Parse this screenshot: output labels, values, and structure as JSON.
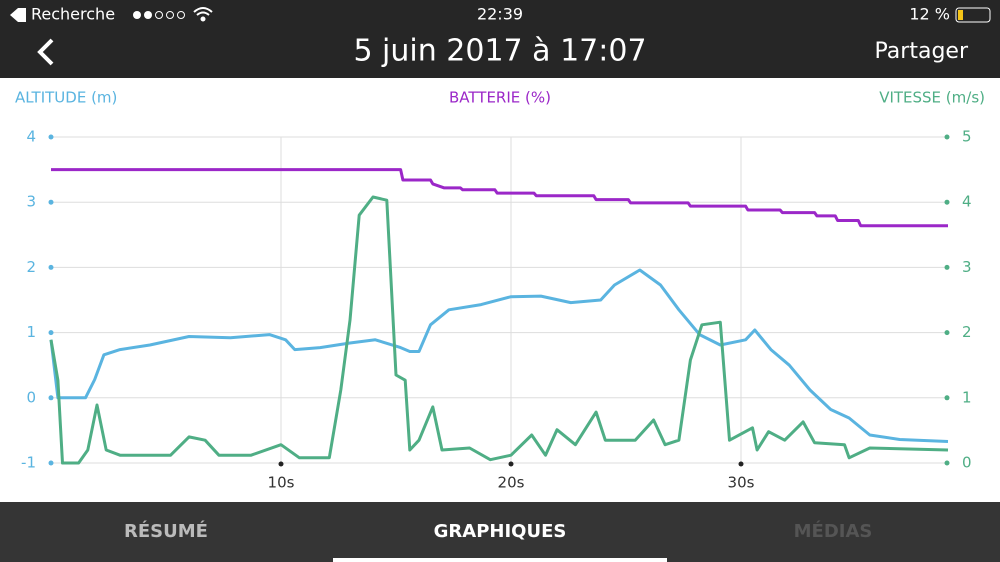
{
  "status_bar": {
    "carrier": "Recherche",
    "time": "22:39",
    "battery": "12 %"
  },
  "header": {
    "title": "5 juin 2017 à 17:07",
    "action": "Partager"
  },
  "tabs": [
    "RÉSUMÉ",
    "GRAPHIQUES",
    "MÉDIAS"
  ],
  "chart_data": {
    "type": "line",
    "y_label": "ALTITUDE (m)",
    "center_label": "BATTERIE (%)",
    "y2_label": "VITESSE (m/s)",
    "xlim": [
      0,
      39
    ],
    "xticks": [
      {
        "value": 10,
        "label": "10s"
      },
      {
        "value": 20,
        "label": "20s"
      },
      {
        "value": 30,
        "label": "30s"
      }
    ],
    "ylim": [
      -1,
      4
    ],
    "yticks": [
      -1,
      0,
      1,
      2,
      3,
      4
    ],
    "y2lim": [
      0,
      5
    ],
    "y2ticks": [
      0,
      1,
      2,
      3,
      4,
      5
    ],
    "grid": true,
    "series": [
      {
        "name": "ALTITUDE (m)",
        "color": "#5ab4e0",
        "axis": "y",
        "x": [
          0,
          0.3,
          1.5,
          1.9,
          2.3,
          3,
          4.3,
          6,
          7.8,
          9.5,
          10.2,
          10.6,
          11.7,
          13,
          14.1,
          15.2,
          15.6,
          16,
          16.5,
          17.3,
          18.7,
          20,
          21.3,
          22.6,
          23.9,
          24.5,
          25.6,
          26.5,
          27.3,
          28.2,
          29.1,
          30.2,
          30.6,
          31.3,
          32.1,
          33,
          33.9,
          34.7,
          35.6,
          36.9,
          39
        ],
        "values": [
          0.89,
          0,
          0,
          0.28,
          0.66,
          0.74,
          0.81,
          0.94,
          0.92,
          0.97,
          0.89,
          0.74,
          0.77,
          0.84,
          0.89,
          0.77,
          0.71,
          0.71,
          1.12,
          1.35,
          1.43,
          1.55,
          1.56,
          1.46,
          1.5,
          1.73,
          1.96,
          1.73,
          1.35,
          0.97,
          0.81,
          0.89,
          1.04,
          0.74,
          0.5,
          0.12,
          -0.18,
          -0.31,
          -0.57,
          -0.64,
          -0.67
        ]
      },
      {
        "name": "BATTERIE (%)",
        "color": "#9b27c8",
        "axis": "y",
        "x": [
          0,
          15.2,
          15.3,
          16.5,
          16.6,
          17.1,
          17.8,
          17.9,
          19.3,
          19.4,
          21,
          21.1,
          23.6,
          23.7,
          25.1,
          25.2,
          27.7,
          27.8,
          30.2,
          30.3,
          31.7,
          31.8,
          33.2,
          33.3,
          34.1,
          34.2,
          35.1,
          35.2,
          39
        ],
        "values": [
          3.5,
          3.5,
          3.34,
          3.34,
          3.28,
          3.22,
          3.22,
          3.19,
          3.19,
          3.14,
          3.14,
          3.1,
          3.1,
          3.04,
          3.04,
          2.99,
          2.99,
          2.94,
          2.94,
          2.88,
          2.88,
          2.84,
          2.84,
          2.79,
          2.79,
          2.72,
          2.72,
          2.64,
          2.64
        ]
      },
      {
        "name": "VITESSE (m/s)",
        "color": "#4fae85",
        "axis": "y2",
        "x": [
          0,
          0.3,
          0.5,
          1.2,
          1.6,
          2,
          2.4,
          3,
          5.2,
          6,
          6.7,
          7.3,
          8.7,
          10,
          10.8,
          12.1,
          12.6,
          13,
          13.4,
          14,
          14.6,
          15,
          15.4,
          15.6,
          16,
          16.6,
          17,
          18.2,
          19.1,
          20,
          20.9,
          21.5,
          22,
          22.8,
          23.7,
          24.1,
          25.4,
          26.2,
          26.7,
          27.3,
          27.8,
          28.3,
          29.1,
          29.5,
          30.5,
          30.7,
          31.2,
          31.9,
          32.7,
          33.2,
          34.5,
          34.7,
          35.6,
          39
        ],
        "values": [
          1.89,
          1.27,
          0,
          0,
          0.2,
          0.89,
          0.2,
          0.12,
          0.12,
          0.4,
          0.35,
          0.12,
          0.12,
          0.28,
          0.08,
          0.08,
          1.12,
          2.19,
          3.8,
          4.08,
          4.03,
          1.35,
          1.27,
          0.2,
          0.35,
          0.86,
          0.2,
          0.23,
          0.05,
          0.12,
          0.43,
          0.12,
          0.51,
          0.28,
          0.78,
          0.35,
          0.35,
          0.66,
          0.28,
          0.35,
          1.58,
          2.12,
          2.16,
          0.35,
          0.54,
          0.2,
          0.48,
          0.35,
          0.63,
          0.31,
          0.28,
          0.08,
          0.23,
          0.2
        ]
      }
    ]
  }
}
